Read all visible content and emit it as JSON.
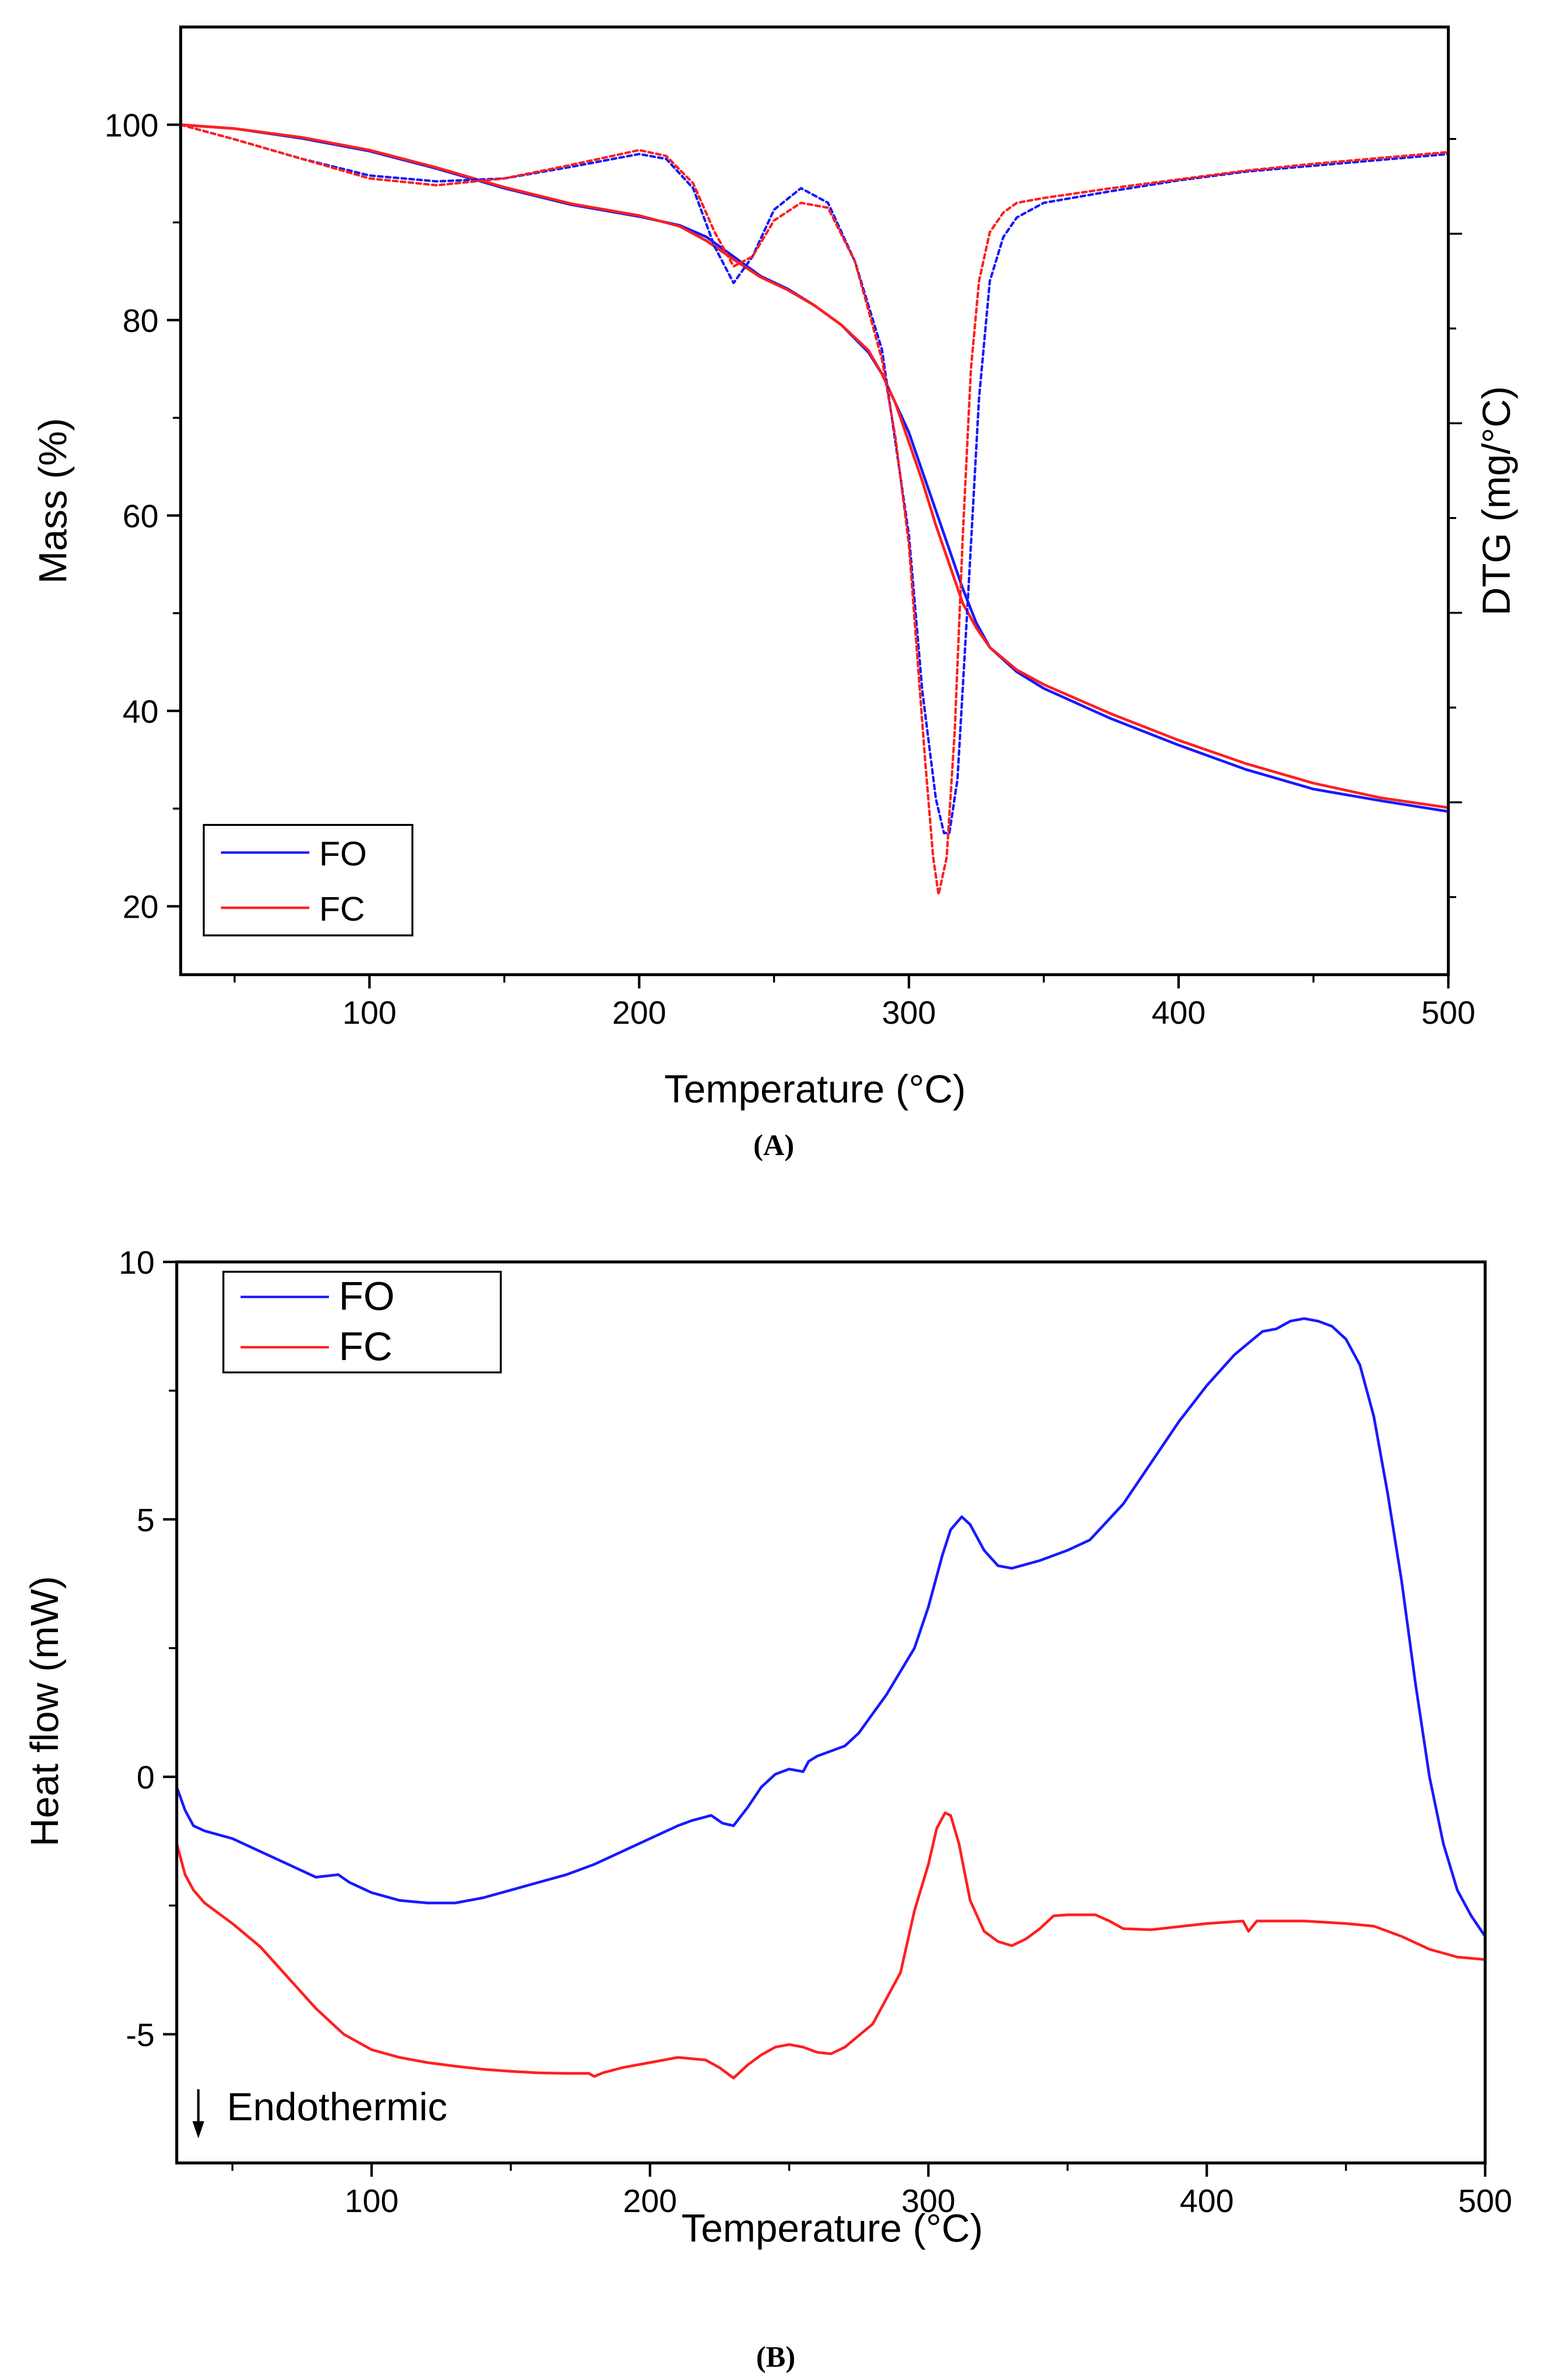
{
  "chart_data": [
    {
      "panel_label": "(A)",
      "type": "line",
      "xlabel": "Temperature (°C)",
      "ylabel": "Mass (%)",
      "ylabel_right": "DTG (mg/°C)",
      "xlim": [
        30,
        500
      ],
      "ylim": [
        13,
        110
      ],
      "x_ticks": [
        100,
        200,
        300,
        400,
        500
      ],
      "y_ticks": [
        20,
        40,
        60,
        80,
        100
      ],
      "legend": {
        "position": "bottom-left",
        "entries": [
          "FO",
          "FC"
        ]
      },
      "series": [
        {
          "name": "FO",
          "kind": "mass",
          "style": "solid",
          "color": "#1a1aff",
          "x": [
            30,
            50,
            75,
            100,
            125,
            150,
            175,
            200,
            215,
            225,
            235,
            245,
            255,
            265,
            275,
            285,
            290,
            300,
            305,
            310,
            315,
            320,
            325,
            330,
            340,
            350,
            375,
            400,
            425,
            450,
            475,
            500
          ],
          "y": [
            100,
            99.6,
            98.6,
            97.3,
            95.5,
            93.5,
            91.8,
            90.6,
            89.7,
            88.5,
            86.5,
            84.5,
            83.2,
            81.5,
            79.5,
            76.7,
            74.5,
            68.5,
            64.5,
            60.5,
            56.5,
            52.5,
            49,
            46.5,
            44,
            42.3,
            39.2,
            36.5,
            34,
            32,
            30.8,
            29.7
          ]
        },
        {
          "name": "FC",
          "kind": "mass",
          "style": "solid",
          "color": "#ff2020",
          "x": [
            30,
            50,
            75,
            100,
            125,
            150,
            175,
            200,
            215,
            225,
            235,
            245,
            255,
            265,
            275,
            285,
            290,
            295,
            300,
            305,
            310,
            315,
            320,
            325,
            330,
            340,
            350,
            375,
            400,
            425,
            450,
            475,
            500
          ],
          "y": [
            100,
            99.6,
            98.7,
            97.4,
            95.6,
            93.6,
            91.9,
            90.7,
            89.6,
            88.1,
            86.2,
            84.4,
            83.1,
            81.5,
            79.5,
            76.9,
            74.5,
            71.5,
            67.5,
            63.5,
            59,
            55,
            51,
            48.5,
            46.5,
            44.2,
            42.7,
            39.7,
            37,
            34.6,
            32.6,
            31.1,
            30.1
          ]
        },
        {
          "name": "FO",
          "kind": "DTG",
          "style": "dotted",
          "color": "#1a1aff",
          "x": [
            30,
            50,
            75,
            100,
            125,
            150,
            175,
            200,
            210,
            220,
            228,
            235,
            242,
            250,
            260,
            270,
            280,
            290,
            300,
            305,
            310,
            313,
            315,
            318,
            322,
            326,
            330,
            335,
            340,
            350,
            375,
            400,
            425,
            450,
            475,
            500
          ],
          "y": [
            100,
            98.5,
            96.5,
            94.8,
            94.2,
            94.5,
            95.7,
            97,
            96.5,
            93.5,
            87.5,
            83.8,
            86.5,
            91.3,
            93.5,
            92,
            86,
            77,
            58,
            42,
            31,
            27.5,
            27.5,
            33,
            52,
            72,
            84,
            88.5,
            90.5,
            92,
            93.2,
            94.3,
            95.2,
            95.8,
            96.4,
            97
          ]
        },
        {
          "name": "FC",
          "kind": "DTG",
          "style": "dotted",
          "color": "#ff2020",
          "x": [
            30,
            50,
            75,
            100,
            125,
            150,
            175,
            200,
            210,
            220,
            228,
            235,
            242,
            250,
            260,
            270,
            280,
            285,
            290,
            295,
            300,
            303,
            306,
            309,
            311,
            314,
            317,
            320,
            323,
            326,
            330,
            335,
            340,
            350,
            375,
            400,
            425,
            450,
            475,
            500
          ],
          "y": [
            100,
            98.5,
            96.5,
            94.5,
            93.8,
            94.5,
            95.9,
            97.4,
            96.8,
            94,
            89,
            85.5,
            86.5,
            90.2,
            92,
            91.5,
            86,
            81,
            76,
            68,
            57,
            46,
            35,
            25,
            21.2,
            25,
            38,
            58,
            75,
            84,
            89,
            91,
            92,
            92.5,
            93.5,
            94.4,
            95.3,
            96,
            96.6,
            97.2
          ]
        }
      ]
    },
    {
      "panel_label": "(B)",
      "type": "line",
      "xlabel": "Temperature (°C)",
      "ylabel": "Heat flow (mW)",
      "xlim": [
        30,
        500
      ],
      "ylim": [
        -7.5,
        10
      ],
      "x_ticks": [
        100,
        200,
        300,
        400,
        500
      ],
      "y_ticks": [
        -5,
        0,
        5,
        10
      ],
      "y_tick_labels": [
        "-5",
        "0",
        "5",
        "10"
      ],
      "annotation": "Endothermic",
      "legend": {
        "position": "top-left",
        "entries": [
          "FO",
          "FC"
        ]
      },
      "series": [
        {
          "name": "FO",
          "style": "solid",
          "color": "#1a1aff",
          "x": [
            30,
            33,
            36,
            40,
            50,
            60,
            70,
            80,
            88,
            92,
            100,
            110,
            120,
            130,
            140,
            150,
            160,
            170,
            180,
            190,
            200,
            210,
            215,
            222,
            226,
            230,
            235,
            240,
            245,
            250,
            255,
            257,
            260,
            270,
            275,
            285,
            295,
            300,
            305,
            308,
            312,
            315,
            320,
            325,
            330,
            340,
            350,
            358,
            370,
            380,
            390,
            400,
            410,
            420,
            425,
            430,
            435,
            440,
            445,
            450,
            455,
            460,
            465,
            470,
            475,
            480,
            485,
            490,
            495,
            500
          ],
          "y": [
            -0.2,
            -0.65,
            -0.95,
            -1.05,
            -1.2,
            -1.45,
            -1.7,
            -1.95,
            -1.9,
            -2.05,
            -2.25,
            -2.4,
            -2.45,
            -2.45,
            -2.35,
            -2.2,
            -2.05,
            -1.9,
            -1.7,
            -1.45,
            -1.2,
            -0.95,
            -0.85,
            -0.75,
            -0.9,
            -0.95,
            -0.6,
            -0.2,
            0.05,
            0.15,
            0.1,
            0.3,
            0.4,
            0.6,
            0.85,
            1.6,
            2.5,
            3.3,
            4.3,
            4.8,
            5.05,
            4.9,
            4.4,
            4.1,
            4.05,
            4.2,
            4.4,
            4.6,
            5.3,
            6.1,
            6.9,
            7.6,
            8.2,
            8.65,
            8.7,
            8.85,
            8.9,
            8.85,
            8.75,
            8.5,
            8.0,
            7.0,
            5.5,
            3.8,
            1.8,
            0.0,
            -1.3,
            -2.2,
            -2.7,
            -3.1
          ]
        },
        {
          "name": "FC",
          "style": "solid",
          "color": "#ff2020",
          "x": [
            30,
            33,
            36,
            40,
            50,
            60,
            70,
            80,
            90,
            100,
            110,
            120,
            130,
            140,
            150,
            160,
            170,
            178,
            180,
            183,
            190,
            200,
            210,
            220,
            225,
            230,
            235,
            240,
            245,
            250,
            255,
            260,
            265,
            270,
            280,
            290,
            295,
            300,
            303,
            306,
            308,
            311,
            315,
            320,
            325,
            330,
            335,
            340,
            345,
            350,
            360,
            365,
            370,
            380,
            400,
            413,
            415,
            418,
            425,
            435,
            450,
            460,
            470,
            480,
            490,
            500
          ],
          "y": [
            -1.3,
            -1.9,
            -2.2,
            -2.45,
            -2.85,
            -3.3,
            -3.9,
            -4.5,
            -5.0,
            -5.3,
            -5.45,
            -5.55,
            -5.62,
            -5.68,
            -5.72,
            -5.75,
            -5.76,
            -5.76,
            -5.82,
            -5.75,
            -5.65,
            -5.55,
            -5.45,
            -5.5,
            -5.65,
            -5.85,
            -5.6,
            -5.4,
            -5.25,
            -5.2,
            -5.25,
            -5.35,
            -5.38,
            -5.25,
            -4.8,
            -3.8,
            -2.6,
            -1.7,
            -1.0,
            -0.7,
            -0.75,
            -1.3,
            -2.4,
            -3.0,
            -3.2,
            -3.28,
            -3.15,
            -2.95,
            -2.7,
            -2.68,
            -2.68,
            -2.8,
            -2.95,
            -2.97,
            -2.85,
            -2.8,
            -3.0,
            -2.8,
            -2.8,
            -2.8,
            -2.85,
            -2.9,
            -3.1,
            -3.35,
            -3.5,
            -3.55
          ]
        }
      ]
    }
  ]
}
